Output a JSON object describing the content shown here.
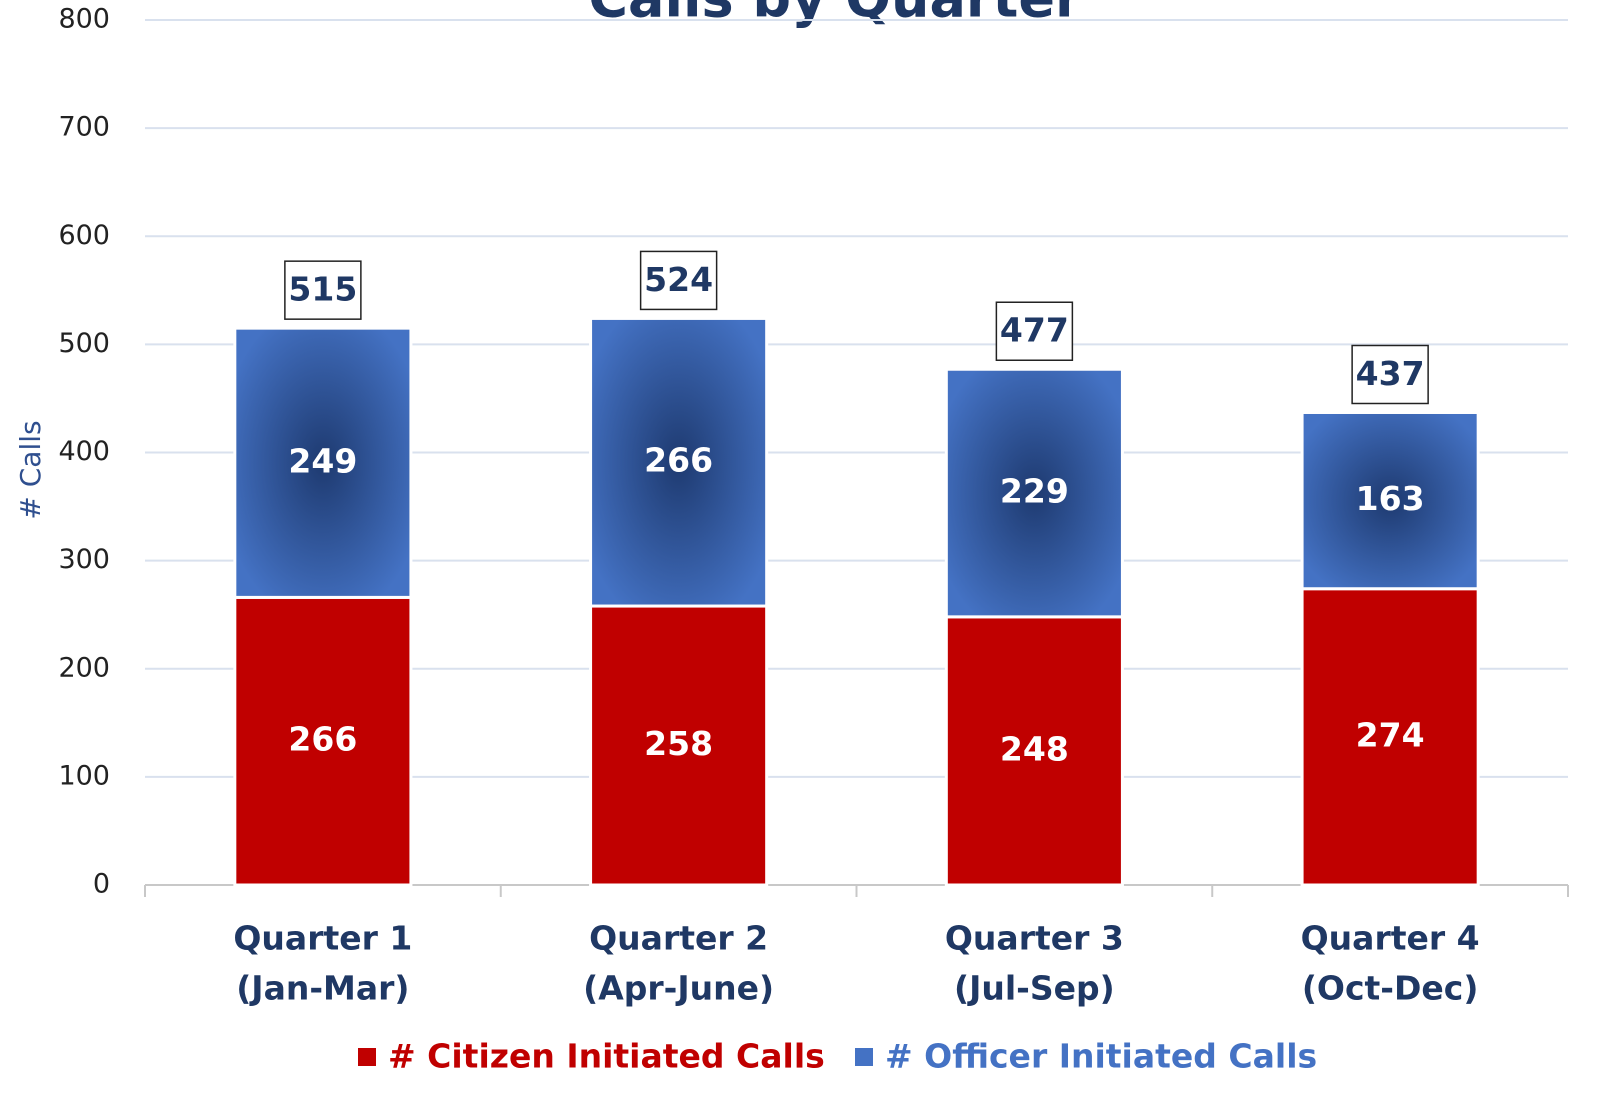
{
  "chart_data": {
    "type": "stacked_bar",
    "title": "Calls by Quarter",
    "y_label": "# Calls",
    "categories": [
      [
        "Quarter 1",
        "(Jan-Mar)"
      ],
      [
        "Quarter 2",
        "(Apr-June)"
      ],
      [
        "Quarter 3",
        "(Jul-Sep)"
      ],
      [
        "Quarter 4",
        "(Oct-Dec)"
      ]
    ],
    "series": [
      {
        "name": "# Citizen Initiated Calls",
        "color": "#c00000",
        "values": [
          266,
          258,
          248,
          274
        ]
      },
      {
        "name": "# Officer Initiated Calls",
        "color": "#4472c4",
        "values": [
          249,
          266,
          229,
          163
        ]
      }
    ],
    "totals": [
      515,
      524,
      477,
      437
    ],
    "ylim": [
      0,
      800
    ],
    "yticks": [
      0,
      100,
      200,
      300,
      400,
      500,
      600,
      700,
      800
    ],
    "grid": true,
    "legend": "bottom"
  }
}
